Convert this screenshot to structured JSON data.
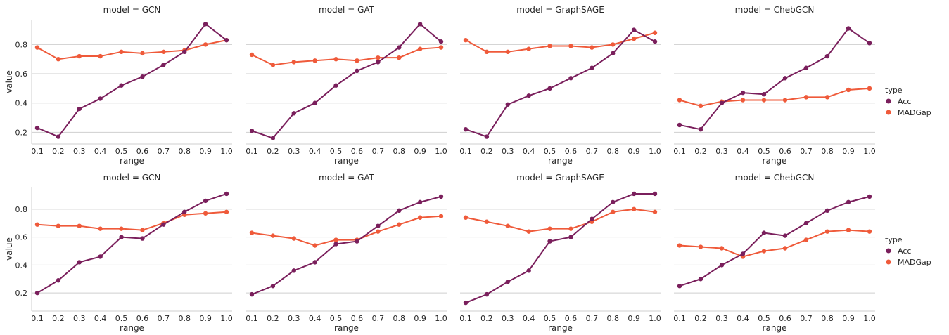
{
  "colors": {
    "Acc": "#7a1f5c",
    "MADGap": "#ef5a3a",
    "grid": "#cfcfcf",
    "text": "#262626"
  },
  "chart_data": {
    "type": "line",
    "facet_grid": {
      "rows": 2,
      "cols": 4
    },
    "x": [
      0.1,
      0.2,
      0.3,
      0.4,
      0.5,
      0.6,
      0.7,
      0.8,
      0.9,
      1.0
    ],
    "x_tick_labels": [
      "0.1",
      "0.2",
      "0.3",
      "0.4",
      "0.5",
      "0.6",
      "0.7",
      "0.8",
      "0.9",
      "1.0"
    ],
    "y_ticks": [
      0.2,
      0.4,
      0.6,
      0.8
    ],
    "y_tick_labels": [
      "0.2",
      "0.4",
      "0.6",
      "0.8"
    ],
    "xlabel": "range",
    "ylabel": "value",
    "grid": true,
    "legend": {
      "title": "type",
      "entries": [
        "Acc",
        "MADGap"
      ],
      "placement": "right"
    },
    "rows": [
      {
        "ylim": [
          0.12,
          0.97
        ],
        "panels": [
          {
            "title": "model = GCN",
            "series": [
              {
                "name": "Acc",
                "values": [
                  0.23,
                  0.17,
                  0.36,
                  0.43,
                  0.52,
                  0.58,
                  0.66,
                  0.75,
                  0.94,
                  0.83
                ]
              },
              {
                "name": "MADGap",
                "values": [
                  0.78,
                  0.7,
                  0.72,
                  0.72,
                  0.75,
                  0.74,
                  0.75,
                  0.76,
                  0.8,
                  0.83
                ]
              }
            ]
          },
          {
            "title": "model = GAT",
            "series": [
              {
                "name": "Acc",
                "values": [
                  0.21,
                  0.16,
                  0.33,
                  0.4,
                  0.52,
                  0.62,
                  0.68,
                  0.78,
                  0.94,
                  0.82
                ]
              },
              {
                "name": "MADGap",
                "values": [
                  0.73,
                  0.66,
                  0.68,
                  0.69,
                  0.7,
                  0.69,
                  0.71,
                  0.71,
                  0.77,
                  0.78
                ]
              }
            ]
          },
          {
            "title": "model = GraphSAGE",
            "series": [
              {
                "name": "Acc",
                "values": [
                  0.22,
                  0.17,
                  0.39,
                  0.45,
                  0.5,
                  0.57,
                  0.64,
                  0.74,
                  0.9,
                  0.82
                ]
              },
              {
                "name": "MADGap",
                "values": [
                  0.83,
                  0.75,
                  0.75,
                  0.77,
                  0.79,
                  0.79,
                  0.78,
                  0.8,
                  0.84,
                  0.88
                ]
              }
            ]
          },
          {
            "title": "model = ChebGCN",
            "series": [
              {
                "name": "Acc",
                "values": [
                  0.25,
                  0.22,
                  0.4,
                  0.47,
                  0.46,
                  0.57,
                  0.64,
                  0.72,
                  0.91,
                  0.81
                ]
              },
              {
                "name": "MADGap",
                "values": [
                  0.42,
                  0.38,
                  0.41,
                  0.42,
                  0.42,
                  0.42,
                  0.44,
                  0.44,
                  0.49,
                  0.5
                ]
              }
            ]
          }
        ]
      },
      {
        "ylim": [
          0.07,
          0.96
        ],
        "panels": [
          {
            "title": "model = GCN",
            "series": [
              {
                "name": "Acc",
                "values": [
                  0.2,
                  0.29,
                  0.42,
                  0.46,
                  0.6,
                  0.59,
                  0.69,
                  0.78,
                  0.86,
                  0.91
                ]
              },
              {
                "name": "MADGap",
                "values": [
                  0.69,
                  0.68,
                  0.68,
                  0.66,
                  0.66,
                  0.65,
                  0.7,
                  0.76,
                  0.77,
                  0.78
                ]
              }
            ]
          },
          {
            "title": "model = GAT",
            "series": [
              {
                "name": "Acc",
                "values": [
                  0.19,
                  0.25,
                  0.36,
                  0.42,
                  0.55,
                  0.57,
                  0.68,
                  0.79,
                  0.85,
                  0.89
                ]
              },
              {
                "name": "MADGap",
                "values": [
                  0.63,
                  0.61,
                  0.59,
                  0.54,
                  0.58,
                  0.58,
                  0.64,
                  0.69,
                  0.74,
                  0.75
                ]
              }
            ]
          },
          {
            "title": "model = GraphSAGE",
            "series": [
              {
                "name": "Acc",
                "values": [
                  0.13,
                  0.19,
                  0.28,
                  0.36,
                  0.57,
                  0.6,
                  0.73,
                  0.85,
                  0.91,
                  0.91
                ]
              },
              {
                "name": "MADGap",
                "values": [
                  0.74,
                  0.71,
                  0.68,
                  0.64,
                  0.66,
                  0.66,
                  0.71,
                  0.78,
                  0.8,
                  0.78
                ]
              }
            ]
          },
          {
            "title": "model = ChebGCN",
            "series": [
              {
                "name": "Acc",
                "values": [
                  0.25,
                  0.3,
                  0.4,
                  0.48,
                  0.63,
                  0.61,
                  0.7,
                  0.79,
                  0.85,
                  0.89
                ]
              },
              {
                "name": "MADGap",
                "values": [
                  0.54,
                  0.53,
                  0.52,
                  0.46,
                  0.5,
                  0.52,
                  0.58,
                  0.64,
                  0.65,
                  0.64
                ]
              }
            ]
          }
        ]
      }
    ]
  }
}
